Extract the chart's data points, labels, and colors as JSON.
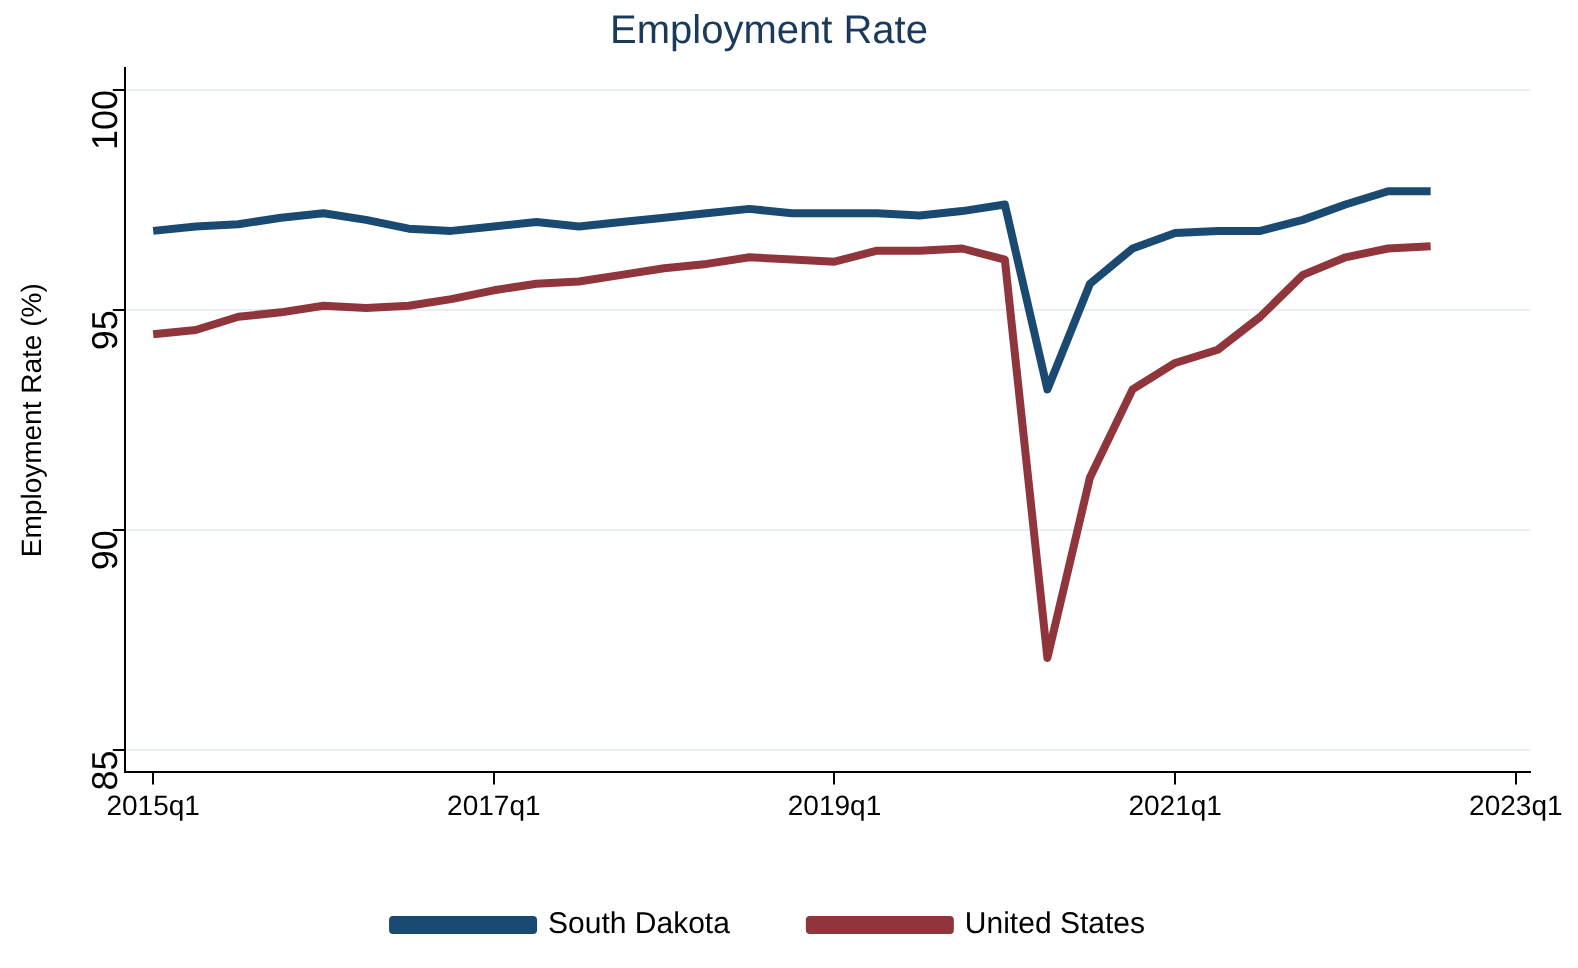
{
  "chart_data": {
    "type": "line",
    "title": "Employment Rate",
    "ylabel": "Employment Rate (%)",
    "x": [
      "2015-01",
      "2015-04",
      "2015-07",
      "2015-10",
      "2016-01",
      "2016-04",
      "2016-07",
      "2016-10",
      "2017-01",
      "2017-04",
      "2017-07",
      "2017-10",
      "2018-01",
      "2018-04",
      "2018-07",
      "2018-10",
      "2019-01",
      "2019-04",
      "2019-07",
      "2019-10",
      "2020-01",
      "2020-04",
      "2020-07",
      "2020-10",
      "2021-01",
      "2021-04",
      "2021-07",
      "2021-10",
      "2022-01",
      "2022-04",
      "2022-07"
    ],
    "series": [
      {
        "name": "South Dakota",
        "color": "#1a4a72",
        "values": [
          96.8,
          96.9,
          96.95,
          97.1,
          97.2,
          97.05,
          96.85,
          96.8,
          96.9,
          97.0,
          96.9,
          97.0,
          97.1,
          97.2,
          97.3,
          97.2,
          97.2,
          97.2,
          97.15,
          97.25,
          97.4,
          93.2,
          95.6,
          96.4,
          96.75,
          96.8,
          96.8,
          97.05,
          97.4,
          97.7,
          97.7
        ]
      },
      {
        "name": "United States",
        "color": "#8f353b",
        "values": [
          94.45,
          94.55,
          94.85,
          94.95,
          95.1,
          95.05,
          95.1,
          95.25,
          95.45,
          95.6,
          95.65,
          95.8,
          95.95,
          96.05,
          96.2,
          96.15,
          96.1,
          96.35,
          96.35,
          96.4,
          96.15,
          87.1,
          91.2,
          93.2,
          93.8,
          94.1,
          94.85,
          95.8,
          96.2,
          96.4,
          96.45
        ]
      }
    ],
    "xlim": [
      "2014-11",
      "2023-02"
    ],
    "xticks": [
      {
        "value": "2015-01",
        "label": "2015q1"
      },
      {
        "value": "2017-01",
        "label": "2017q1"
      },
      {
        "value": "2019-01",
        "label": "2019q1"
      },
      {
        "value": "2021-01",
        "label": "2021q1"
      },
      {
        "value": "2023-01",
        "label": "2023q1"
      }
    ],
    "ylim": [
      84.5,
      100.5
    ],
    "yticks": [
      85,
      90,
      95,
      100
    ],
    "grid": "y",
    "legend": "bottom",
    "marker": "none",
    "line_style": "solid"
  }
}
